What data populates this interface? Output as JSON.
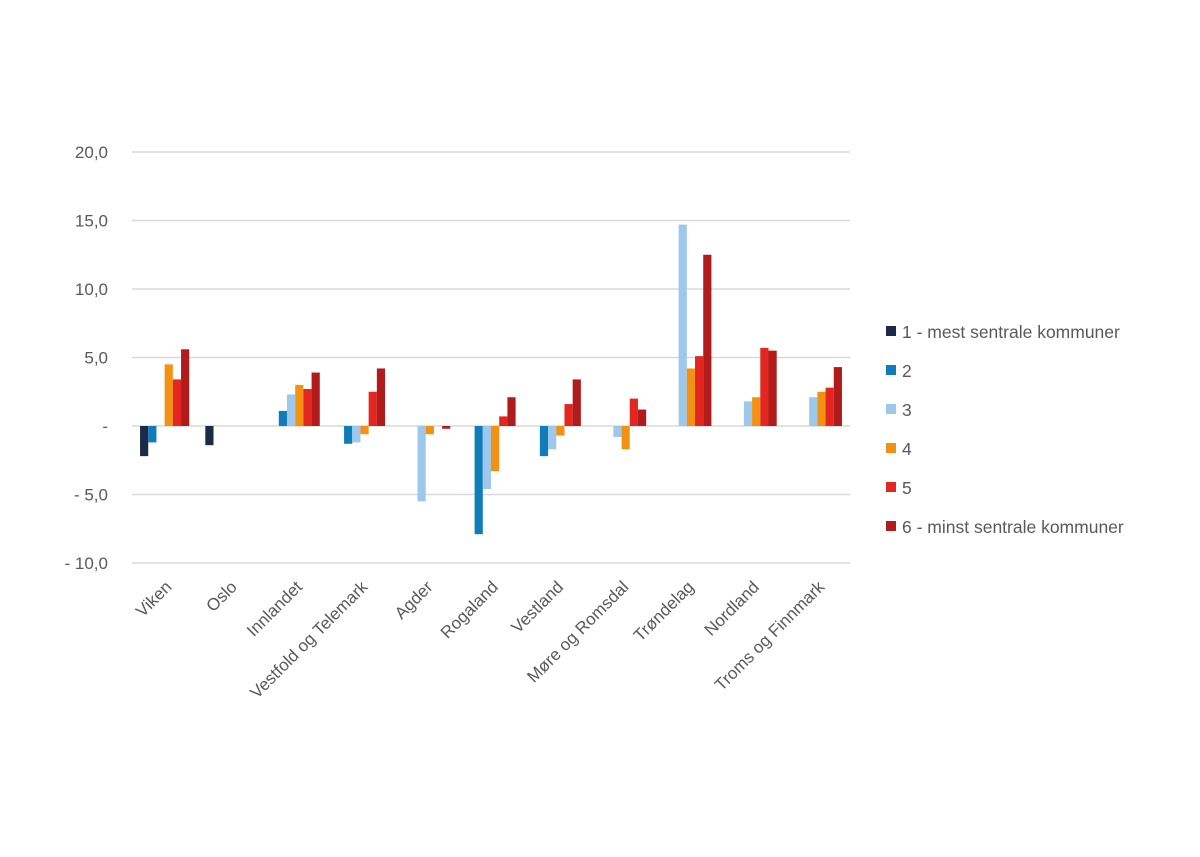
{
  "chart_data": {
    "type": "bar",
    "title": "",
    "xlabel": "",
    "ylabel": "",
    "ylim": [
      -10,
      20
    ],
    "yticks": [
      20,
      15,
      10,
      5,
      0,
      -5,
      -10
    ],
    "ytick_labels": [
      "20,0",
      "15,0",
      "10,0",
      "5,0",
      "-",
      "- 5,0",
      "- 10,0"
    ],
    "grid": true,
    "legend_position": "right",
    "categories": [
      "Viken",
      "Oslo",
      "Innlandet",
      "Vestfold og Telemark",
      "Agder",
      "Rogaland",
      "Vestland",
      "Møre og Romsdal",
      "Trøndelag",
      "Nordland",
      "Troms og Finnmark"
    ],
    "series": [
      {
        "name": "1 - mest sentrale kommuner",
        "color": "#1b2a47",
        "values": [
          -2.2,
          -1.4,
          0,
          0,
          0,
          0,
          0,
          0,
          0,
          0,
          0
        ]
      },
      {
        "name": "2",
        "color": "#0f7dba",
        "values": [
          -1.2,
          0,
          1.1,
          -1.3,
          0,
          -7.9,
          -2.2,
          0,
          0,
          0,
          0
        ]
      },
      {
        "name": "3",
        "color": "#9dc8eb",
        "values": [
          0,
          0,
          2.3,
          -1.2,
          -5.5,
          -4.6,
          -1.7,
          -0.8,
          14.7,
          1.8,
          2.1
        ]
      },
      {
        "name": "4",
        "color": "#f39212",
        "values": [
          4.5,
          0,
          3.0,
          -0.6,
          -0.6,
          -3.3,
          -0.7,
          -1.7,
          4.2,
          2.1,
          2.5
        ]
      },
      {
        "name": "5",
        "color": "#e3261f",
        "values": [
          3.4,
          0,
          2.7,
          2.5,
          0,
          0.7,
          1.6,
          2.0,
          5.1,
          5.7,
          2.8
        ]
      },
      {
        "name": "6 - minst sentrale kommuner",
        "color": "#b01c1c",
        "values": [
          5.6,
          0,
          3.9,
          4.2,
          -0.2,
          2.1,
          3.4,
          1.2,
          12.5,
          5.5,
          4.3
        ]
      }
    ]
  }
}
